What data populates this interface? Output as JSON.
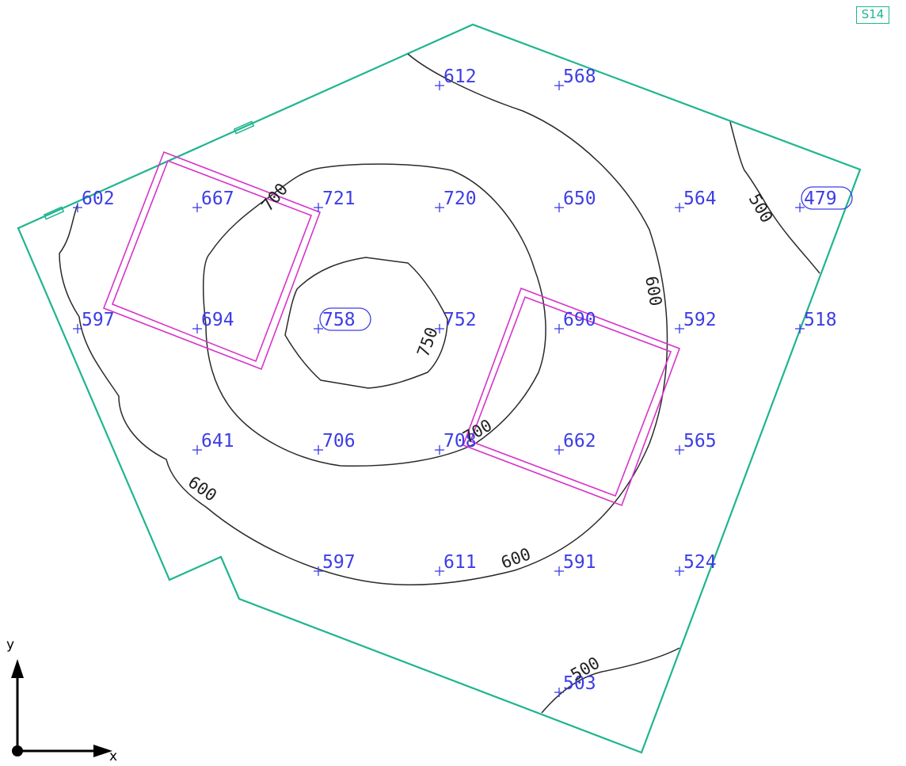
{
  "sheet": {
    "id": "S14"
  },
  "axes": {
    "x_label": "x",
    "y_label": "y"
  },
  "colors": {
    "boundary": "#1fb58f",
    "contour": "#2a2a2a",
    "zone": "#d633c9",
    "points": "#3d3de6"
  },
  "points": [
    {
      "label": "612",
      "circled": false
    },
    {
      "label": "568",
      "circled": false
    },
    {
      "label": "602",
      "circled": false
    },
    {
      "label": "667",
      "circled": false
    },
    {
      "label": "721",
      "circled": false
    },
    {
      "label": "720",
      "circled": false
    },
    {
      "label": "650",
      "circled": false
    },
    {
      "label": "564",
      "circled": false
    },
    {
      "label": "479",
      "circled": true
    },
    {
      "label": "597",
      "circled": false
    },
    {
      "label": "694",
      "circled": false
    },
    {
      "label": "758",
      "circled": true
    },
    {
      "label": "752",
      "circled": false
    },
    {
      "label": "690",
      "circled": false
    },
    {
      "label": "592",
      "circled": false
    },
    {
      "label": "518",
      "circled": false
    },
    {
      "label": "641",
      "circled": false
    },
    {
      "label": "706",
      "circled": false
    },
    {
      "label": "708",
      "circled": false
    },
    {
      "label": "662",
      "circled": false
    },
    {
      "label": "565",
      "circled": false
    },
    {
      "label": "597",
      "circled": false
    },
    {
      "label": "611",
      "circled": false
    },
    {
      "label": "591",
      "circled": false
    },
    {
      "label": "524",
      "circled": false
    },
    {
      "label": "503",
      "circled": false
    }
  ],
  "contour_labels": [
    "700",
    "500",
    "600",
    "750",
    "700",
    "600",
    "600",
    "500"
  ]
}
